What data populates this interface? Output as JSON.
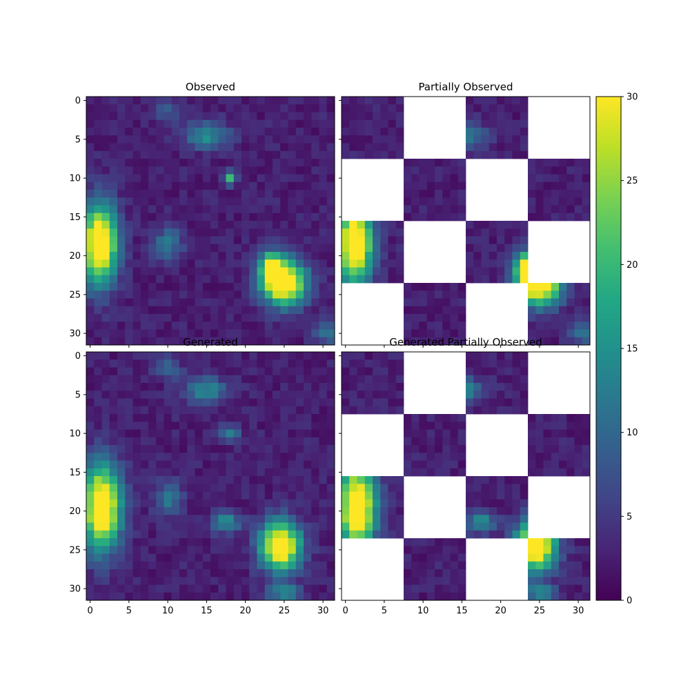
{
  "chart_data": {
    "type": "heatmap",
    "colormap": "viridis",
    "grid_size": 32,
    "colorbar": {
      "min": 0,
      "max": 30,
      "ticks": [
        0,
        5,
        10,
        15,
        20,
        25,
        30
      ]
    },
    "xticks": [
      0,
      5,
      10,
      15,
      20,
      25,
      30
    ],
    "yticks": [
      0,
      5,
      10,
      15,
      20,
      25,
      30
    ],
    "checkerboard_block": 8,
    "grid": false,
    "panels": [
      {
        "title": "Observed",
        "source": "observed",
        "masked": false
      },
      {
        "title": "Partially Observed",
        "source": "observed",
        "masked": true
      },
      {
        "title": "Generated",
        "source": "generated",
        "masked": false
      },
      {
        "title": "Generated Partially Observed",
        "source": "generated",
        "masked": true
      }
    ],
    "features": {
      "observed": [
        {
          "x": 1.2,
          "y": 18.5,
          "amp": 34,
          "sx": 1.6,
          "sy": 3.6
        },
        {
          "x": 25,
          "y": 23.5,
          "amp": 34,
          "sx": 2.0,
          "sy": 2.0
        },
        {
          "x": 23.3,
          "y": 21.5,
          "amp": 20,
          "sx": 1.0,
          "sy": 1.5
        },
        {
          "x": 15,
          "y": 4.5,
          "amp": 12,
          "sx": 2.0,
          "sy": 1.2
        },
        {
          "x": 18,
          "y": 10,
          "amp": 16,
          "sx": 0.6,
          "sy": 0.6
        },
        {
          "x": 10,
          "y": 18.5,
          "amp": 9,
          "sx": 1.3,
          "sy": 1.6
        },
        {
          "x": 10,
          "y": 1.5,
          "amp": 6,
          "sx": 1.2,
          "sy": 1.0
        },
        {
          "x": 30.5,
          "y": 30,
          "amp": 9,
          "sx": 1.2,
          "sy": 1.0
        }
      ],
      "generated": [
        {
          "x": 1.5,
          "y": 19.5,
          "amp": 34,
          "sx": 1.7,
          "sy": 3.8
        },
        {
          "x": 24.5,
          "y": 24.5,
          "amp": 34,
          "sx": 1.8,
          "sy": 2.2
        },
        {
          "x": 15,
          "y": 4.5,
          "amp": 11,
          "sx": 2.0,
          "sy": 1.2
        },
        {
          "x": 18,
          "y": 10,
          "amp": 11,
          "sx": 0.9,
          "sy": 0.7
        },
        {
          "x": 10,
          "y": 18.5,
          "amp": 9,
          "sx": 1.3,
          "sy": 1.6
        },
        {
          "x": 17.5,
          "y": 21.5,
          "amp": 12,
          "sx": 1.3,
          "sy": 1.0
        },
        {
          "x": 10,
          "y": 1.5,
          "amp": 7,
          "sx": 1.2,
          "sy": 1.0
        },
        {
          "x": 25,
          "y": 30.5,
          "amp": 12,
          "sx": 1.5,
          "sy": 0.8
        }
      ]
    }
  }
}
